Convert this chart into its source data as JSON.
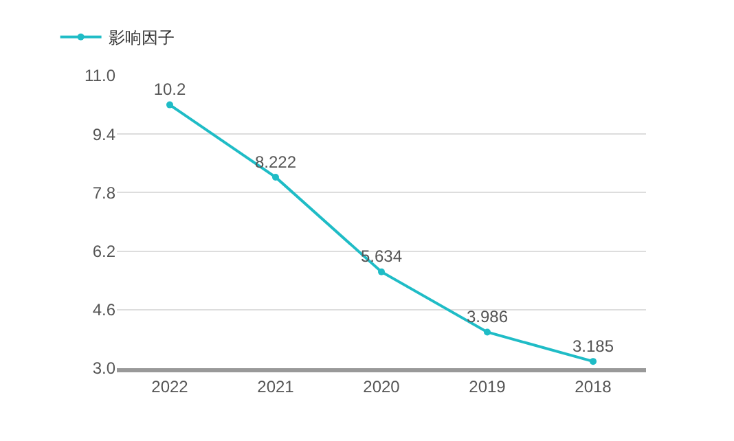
{
  "chart_data": {
    "type": "line",
    "categories": [
      "2022",
      "2021",
      "2020",
      "2019",
      "2018"
    ],
    "series": [
      {
        "name": "影响因子",
        "color": "#1fbcc6",
        "values": [
          10.2,
          8.222,
          5.634,
          3.986,
          3.185
        ]
      }
    ],
    "ylim": [
      3.0,
      11.0
    ],
    "yticks": [
      {
        "value": 3.0,
        "label": "3.0"
      },
      4.6,
      6.2,
      7.8,
      9.4,
      {
        "value": 11.0,
        "label": "11.0"
      }
    ],
    "grid": "y",
    "legend": "top left",
    "marker": "circle",
    "line_style": "solid",
    "data_labels": true
  }
}
